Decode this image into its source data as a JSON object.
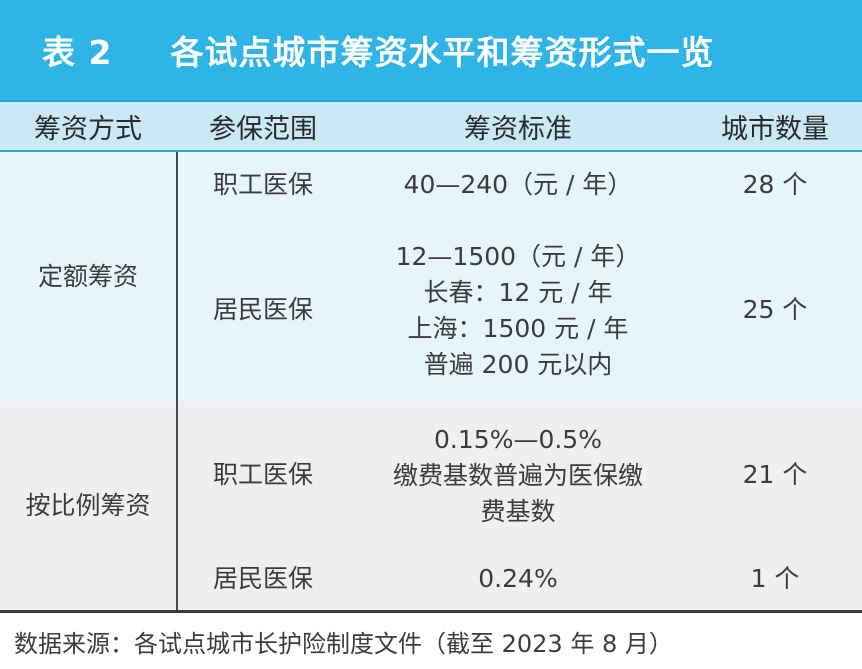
{
  "title": {
    "number": "表 2",
    "text": "各试点城市筹资水平和筹资形式一览"
  },
  "headers": [
    "筹资方式",
    "参保范围",
    "筹资标准",
    "城市数量"
  ],
  "groups": [
    {
      "method": "定额筹资",
      "rows": [
        {
          "scope": "职工医保",
          "standard": [
            "40—240（元 / 年）"
          ],
          "count": "28 个"
        },
        {
          "scope": "居民医保",
          "standard": [
            "12—1500（元 / 年）",
            "长春：12 元 / 年",
            "上海：1500 元 / 年",
            "普遍 200 元以内"
          ],
          "count": "25 个"
        }
      ]
    },
    {
      "method": "按比例筹资",
      "rows": [
        {
          "scope": "职工医保",
          "standard": [
            "0.15%—0.5%",
            "缴费基数普遍为医保缴",
            "费基数"
          ],
          "count": "21 个"
        },
        {
          "scope": "居民医保",
          "standard": [
            "0.24%"
          ],
          "count": "1 个"
        }
      ]
    }
  ],
  "source": "数据来源：各试点城市长护险制度文件（截至 2023 年 8 月）"
}
